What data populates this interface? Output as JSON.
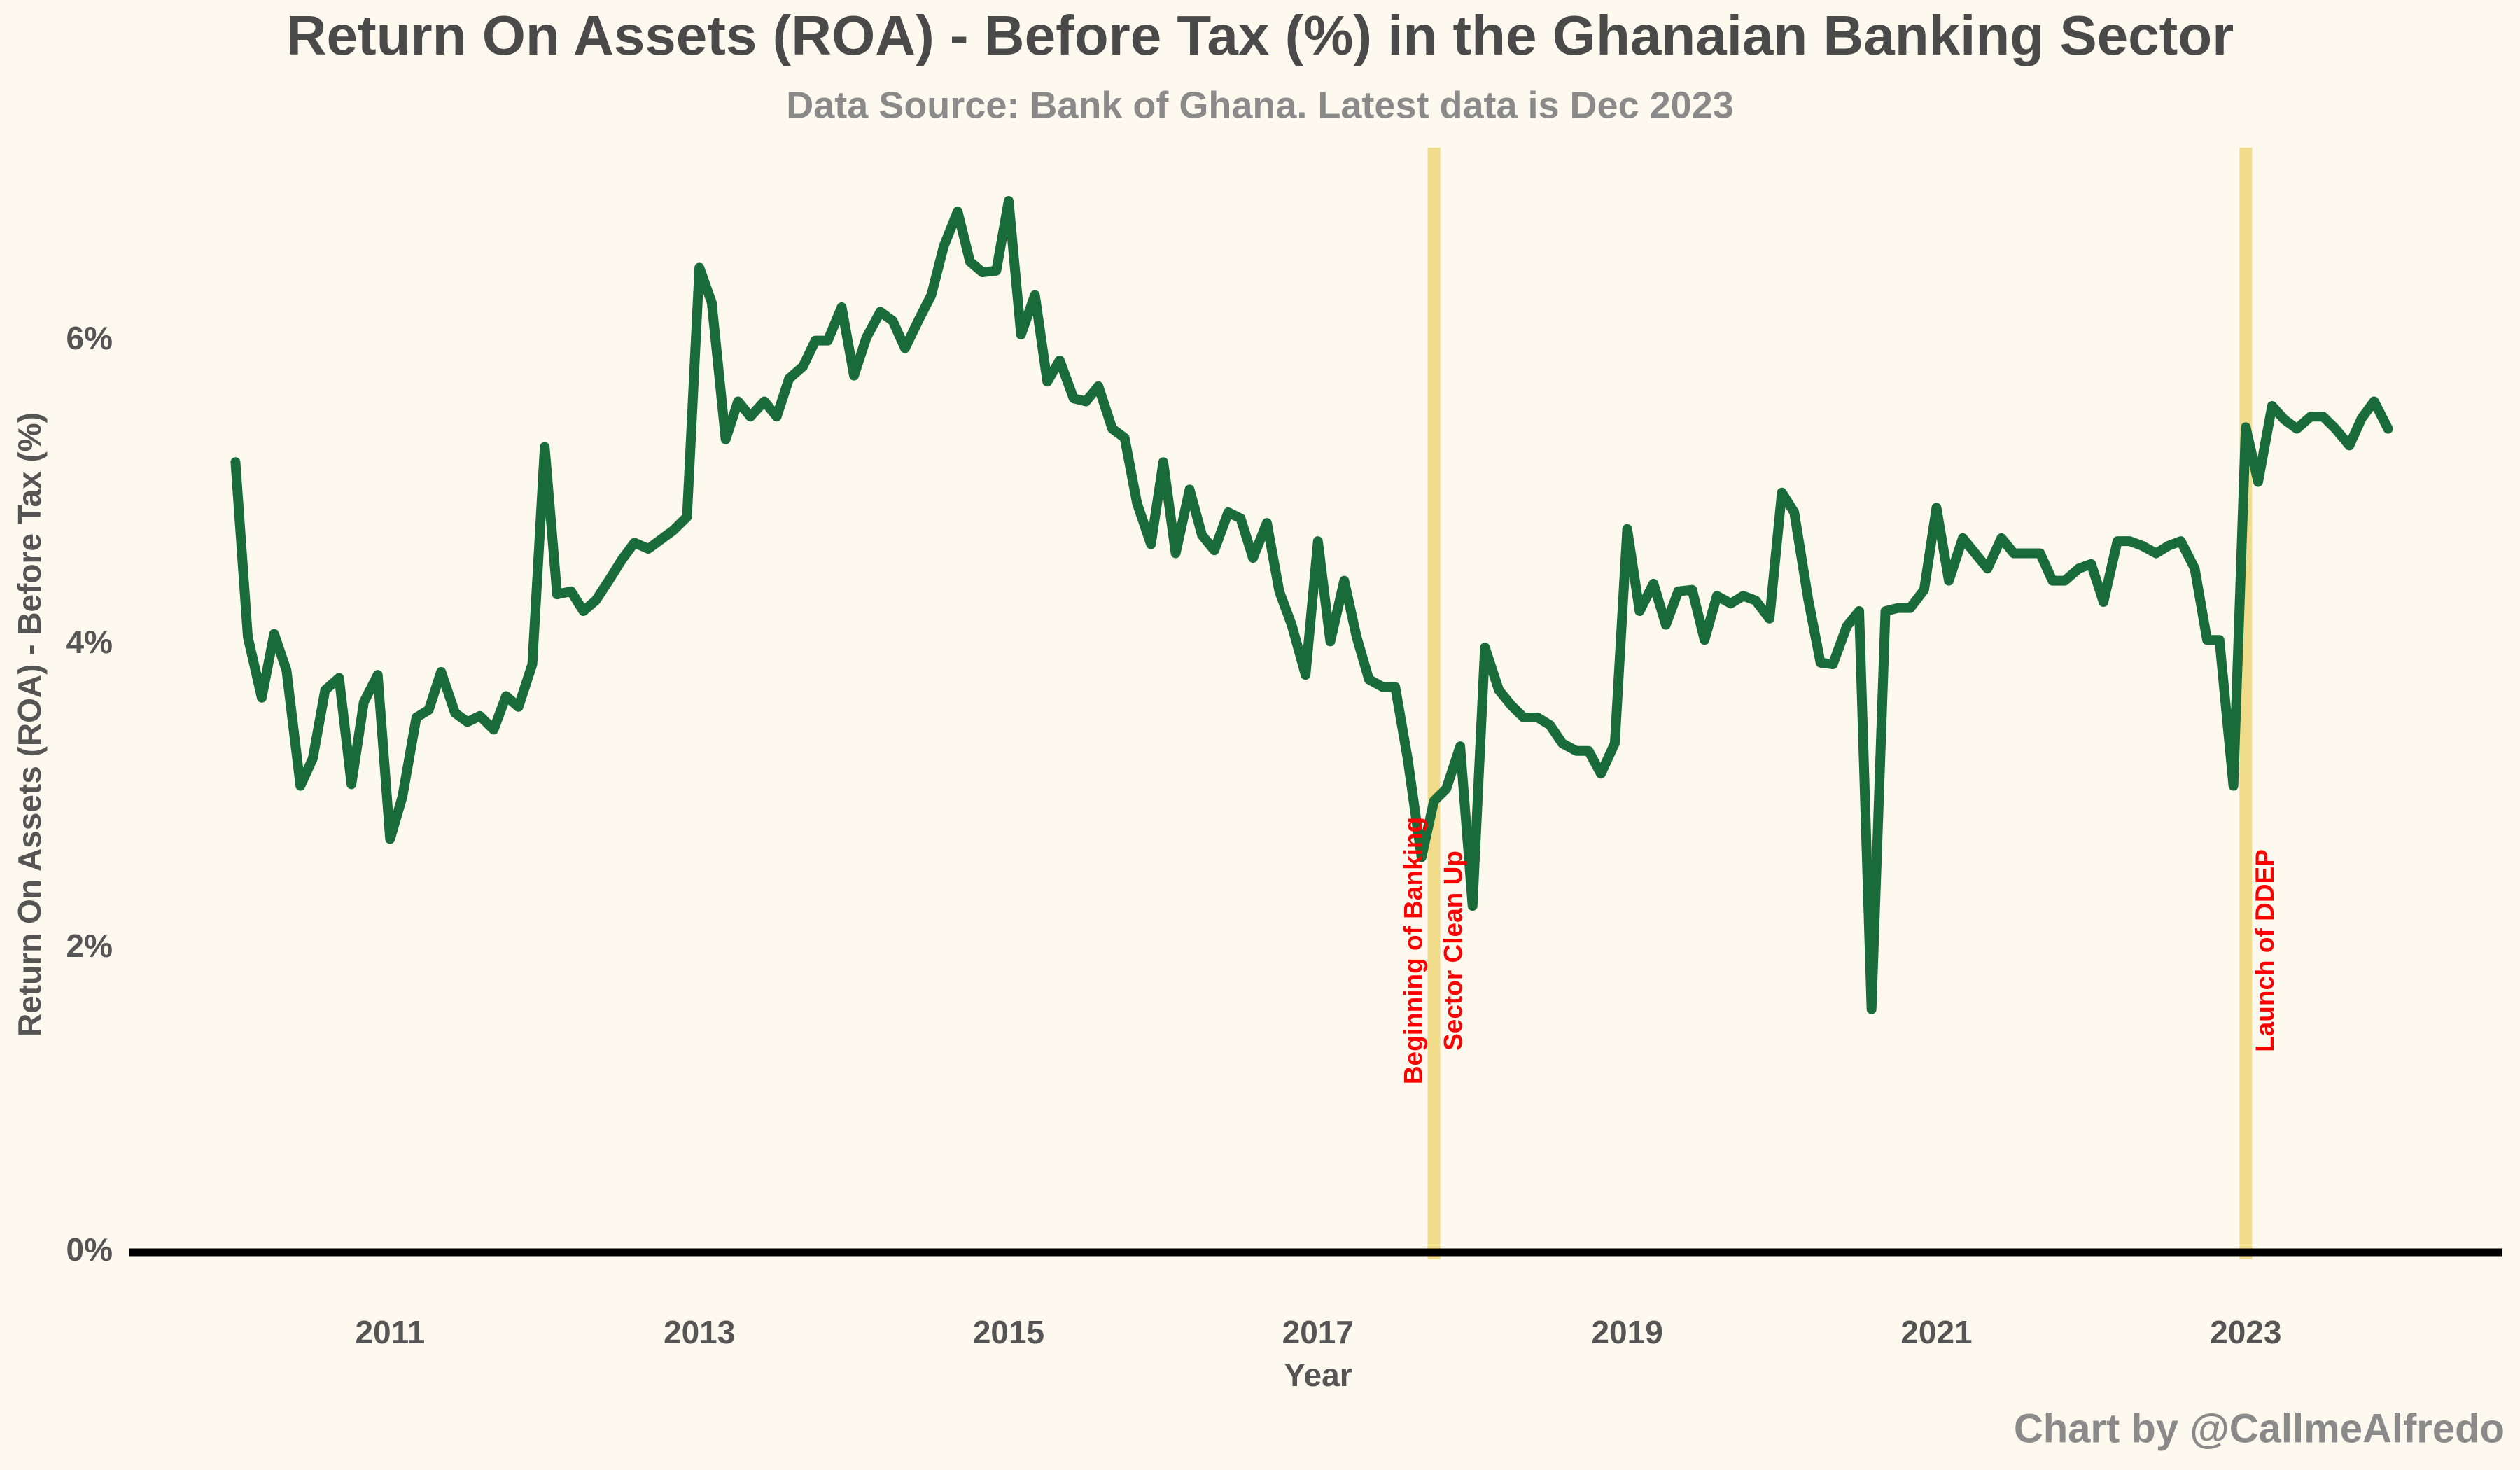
{
  "chart_data": {
    "type": "line",
    "title": "Return On Assets (ROA) - Before Tax (%) in the Ghanaian Banking Sector",
    "subtitle": "Data Source: Bank of Ghana. Latest data is Dec 2023",
    "x_label": "Year",
    "y_label": "Return On Assets (ROA) -  Before Tax  (%)",
    "credit": "Chart by @CallmeAlfredo",
    "xlim": [
      2009.31,
      2024.66
    ],
    "ylim": [
      0,
      7.27
    ],
    "xticks": [
      2011,
      2013,
      2015,
      2017,
      2019,
      2021,
      2023
    ],
    "yticks": [
      {
        "value": 0,
        "label": "0%"
      },
      {
        "value": 2,
        "label": "2%"
      },
      {
        "value": 4,
        "label": "4%"
      },
      {
        "value": 6,
        "label": "6%"
      }
    ],
    "grid": false,
    "x": [
      2010,
      2010.08,
      2010.17,
      2010.25,
      2010.33,
      2010.42,
      2010.5,
      2010.58,
      2010.67,
      2010.75,
      2010.83,
      2010.92,
      2011,
      2011.08,
      2011.17,
      2011.25,
      2011.33,
      2011.42,
      2011.5,
      2011.58,
      2011.67,
      2011.75,
      2011.83,
      2011.92,
      2012,
      2012.08,
      2012.17,
      2012.25,
      2012.33,
      2012.42,
      2012.5,
      2012.58,
      2012.67,
      2012.75,
      2012.83,
      2012.92,
      2013,
      2013.08,
      2013.17,
      2013.25,
      2013.33,
      2013.42,
      2013.5,
      2013.58,
      2013.67,
      2013.75,
      2013.83,
      2013.92,
      2014,
      2014.08,
      2014.17,
      2014.25,
      2014.33,
      2014.42,
      2014.5,
      2014.58,
      2014.67,
      2014.75,
      2014.83,
      2014.92,
      2015,
      2015.08,
      2015.17,
      2015.25,
      2015.33,
      2015.42,
      2015.5,
      2015.58,
      2015.67,
      2015.75,
      2015.83,
      2015.92,
      2016,
      2016.08,
      2016.17,
      2016.25,
      2016.33,
      2016.42,
      2016.5,
      2016.58,
      2016.67,
      2016.75,
      2016.83,
      2016.92,
      2017,
      2017.08,
      2017.17,
      2017.25,
      2017.33,
      2017.42,
      2017.5,
      2017.58,
      2017.67,
      2017.75,
      2017.83,
      2017.92,
      2018,
      2018.08,
      2018.17,
      2018.25,
      2018.33,
      2018.42,
      2018.5,
      2018.58,
      2018.67,
      2018.75,
      2018.83,
      2018.92,
      2019,
      2019.08,
      2019.17,
      2019.25,
      2019.33,
      2019.42,
      2019.5,
      2019.58,
      2019.67,
      2019.75,
      2019.83,
      2019.92,
      2020,
      2020.08,
      2020.17,
      2020.25,
      2020.33,
      2020.42,
      2020.5,
      2020.58,
      2020.67,
      2020.75,
      2020.83,
      2020.92,
      2021,
      2021.08,
      2021.17,
      2021.25,
      2021.33,
      2021.42,
      2021.5,
      2021.58,
      2021.67,
      2021.75,
      2021.83,
      2021.92,
      2022,
      2022.08,
      2022.17,
      2022.25,
      2022.33,
      2022.42,
      2022.5,
      2022.58,
      2022.67,
      2022.75,
      2022.83,
      2022.92,
      2023,
      2023.08,
      2023.17,
      2023.25,
      2023.33,
      2023.42,
      2023.5,
      2023.58,
      2023.67,
      2023.75,
      2023.83,
      2023.92
    ],
    "series": [
      {
        "color": "#1a6b3a",
        "values": [
          5.2,
          4.05,
          3.65,
          4.07,
          3.83,
          3.07,
          3.25,
          3.7,
          3.78,
          3.08,
          3.62,
          3.8,
          2.72,
          3.0,
          3.52,
          3.57,
          3.82,
          3.55,
          3.49,
          3.53,
          3.44,
          3.66,
          3.59,
          3.87,
          5.3,
          4.33,
          4.35,
          4.22,
          4.29,
          4.43,
          4.56,
          4.67,
          4.63,
          4.69,
          4.75,
          4.84,
          6.48,
          6.25,
          5.35,
          5.6,
          5.5,
          5.6,
          5.5,
          5.75,
          5.83,
          6.0,
          6.0,
          6.22,
          5.77,
          6.02,
          6.19,
          6.13,
          5.95,
          6.14,
          6.3,
          6.62,
          6.85,
          6.52,
          6.45,
          6.46,
          6.92,
          6.04,
          6.3,
          5.73,
          5.87,
          5.62,
          5.6,
          5.7,
          5.42,
          5.36,
          4.93,
          4.66,
          5.2,
          4.6,
          5.02,
          4.72,
          4.62,
          4.87,
          4.83,
          4.57,
          4.8,
          4.35,
          4.13,
          3.8,
          4.68,
          4.02,
          4.42,
          4.05,
          3.77,
          3.72,
          3.72,
          3.25,
          2.6,
          2.97,
          3.05,
          3.33,
          2.28,
          3.98,
          3.7,
          3.6,
          3.52,
          3.52,
          3.47,
          3.35,
          3.3,
          3.3,
          3.15,
          3.35,
          4.76,
          4.22,
          4.4,
          4.13,
          4.35,
          4.36,
          4.03,
          4.32,
          4.27,
          4.32,
          4.29,
          4.17,
          5.0,
          4.87,
          4.3,
          3.88,
          3.87,
          4.12,
          4.22,
          1.6,
          4.22,
          4.24,
          4.24,
          4.36,
          4.9,
          4.42,
          4.7,
          4.6,
          4.5,
          4.7,
          4.6,
          4.6,
          4.6,
          4.42,
          4.42,
          4.5,
          4.53,
          4.28,
          4.68,
          4.68,
          4.65,
          4.6,
          4.65,
          4.68,
          4.5,
          4.03,
          4.03,
          3.07,
          5.43,
          5.07,
          5.57,
          5.48,
          5.42,
          5.5,
          5.5,
          5.42,
          5.31,
          5.49,
          5.6,
          5.42
        ]
      }
    ],
    "annotations": [
      {
        "x": 2017.75,
        "color": "#f0dc8a",
        "text_color": "#ff0000",
        "lines": [
          "Beginning of Banking",
          "Sector Clean Up"
        ]
      },
      {
        "x": 2023.0,
        "color": "#f0dc8a",
        "text_color": "#ff0000",
        "lines": [
          "Launch of DDEP"
        ]
      }
    ]
  }
}
